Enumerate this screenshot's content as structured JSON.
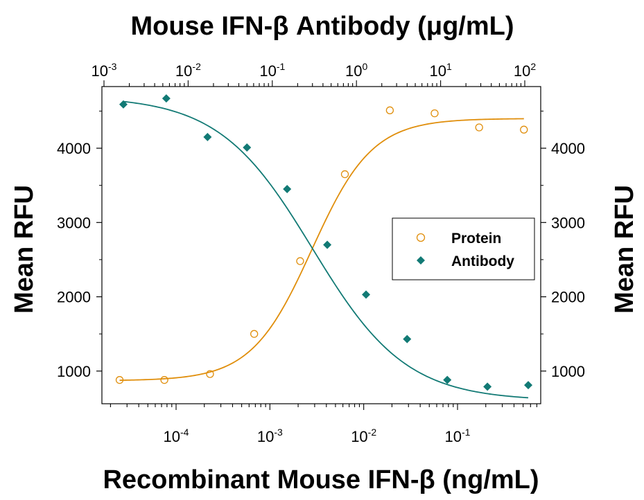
{
  "chart_data": {
    "type": "scatter",
    "title": "Mouse IFN-β Antibody (μg/mL)",
    "xlabel": "Recombinant Mouse IFN-β (ng/mL)",
    "ylabel": "Mean RFU",
    "ylabel_right": "Mean RFU",
    "y_ticks": [
      "1000",
      "2000",
      "3000",
      "4000"
    ],
    "ylim": [
      560,
      4830
    ],
    "x_scale": "log",
    "top_axis": {
      "scale": "log",
      "ticks": [
        {
          "base": "10",
          "exp": "-3"
        },
        {
          "base": "10",
          "exp": "-2"
        },
        {
          "base": "10",
          "exp": "-1"
        },
        {
          "base": "10",
          "exp": "0"
        },
        {
          "base": "10",
          "exp": "1"
        },
        {
          "base": "10",
          "exp": "2"
        }
      ]
    },
    "bottom_axis": {
      "scale": "log",
      "ticks": [
        {
          "base": "10",
          "exp": "-4"
        },
        {
          "base": "10",
          "exp": "-3"
        },
        {
          "base": "10",
          "exp": "-2"
        },
        {
          "base": "10",
          "exp": "-1"
        }
      ]
    },
    "legend": {
      "position": "right",
      "entries": [
        "Protein",
        "Antibody"
      ]
    },
    "grid": false,
    "series": [
      {
        "name": "Protein",
        "axis": "bottom (ng/mL)",
        "marker": "open-circle",
        "color": "#E08E0B",
        "x": [
          2.5e-05,
          7.5e-05,
          0.00023,
          0.00068,
          0.0021,
          0.0063,
          0.019,
          0.057,
          0.17,
          0.51
        ],
        "y": [
          880,
          880,
          960,
          1500,
          2480,
          3650,
          4510,
          4470,
          4280,
          4250
        ],
        "fit": {
          "bottom": 870,
          "top": 4400,
          "ec50": 0.0028,
          "hill": 1.35
        }
      },
      {
        "name": "Antibody",
        "axis": "top (μg/mL)",
        "marker": "filled-diamond",
        "color": "#127A75",
        "x": [
          0.0017,
          0.0055,
          0.017,
          0.05,
          0.15,
          0.45,
          1.3,
          4.0,
          12,
          36,
          110
        ],
        "y": [
          4590,
          4670,
          4150,
          4010,
          3450,
          2700,
          2030,
          1430,
          880,
          790,
          810
        ],
        "fit": {
          "bottom": 600,
          "top": 4700,
          "ec50": 0.3,
          "hill": 0.78
        }
      }
    ]
  }
}
